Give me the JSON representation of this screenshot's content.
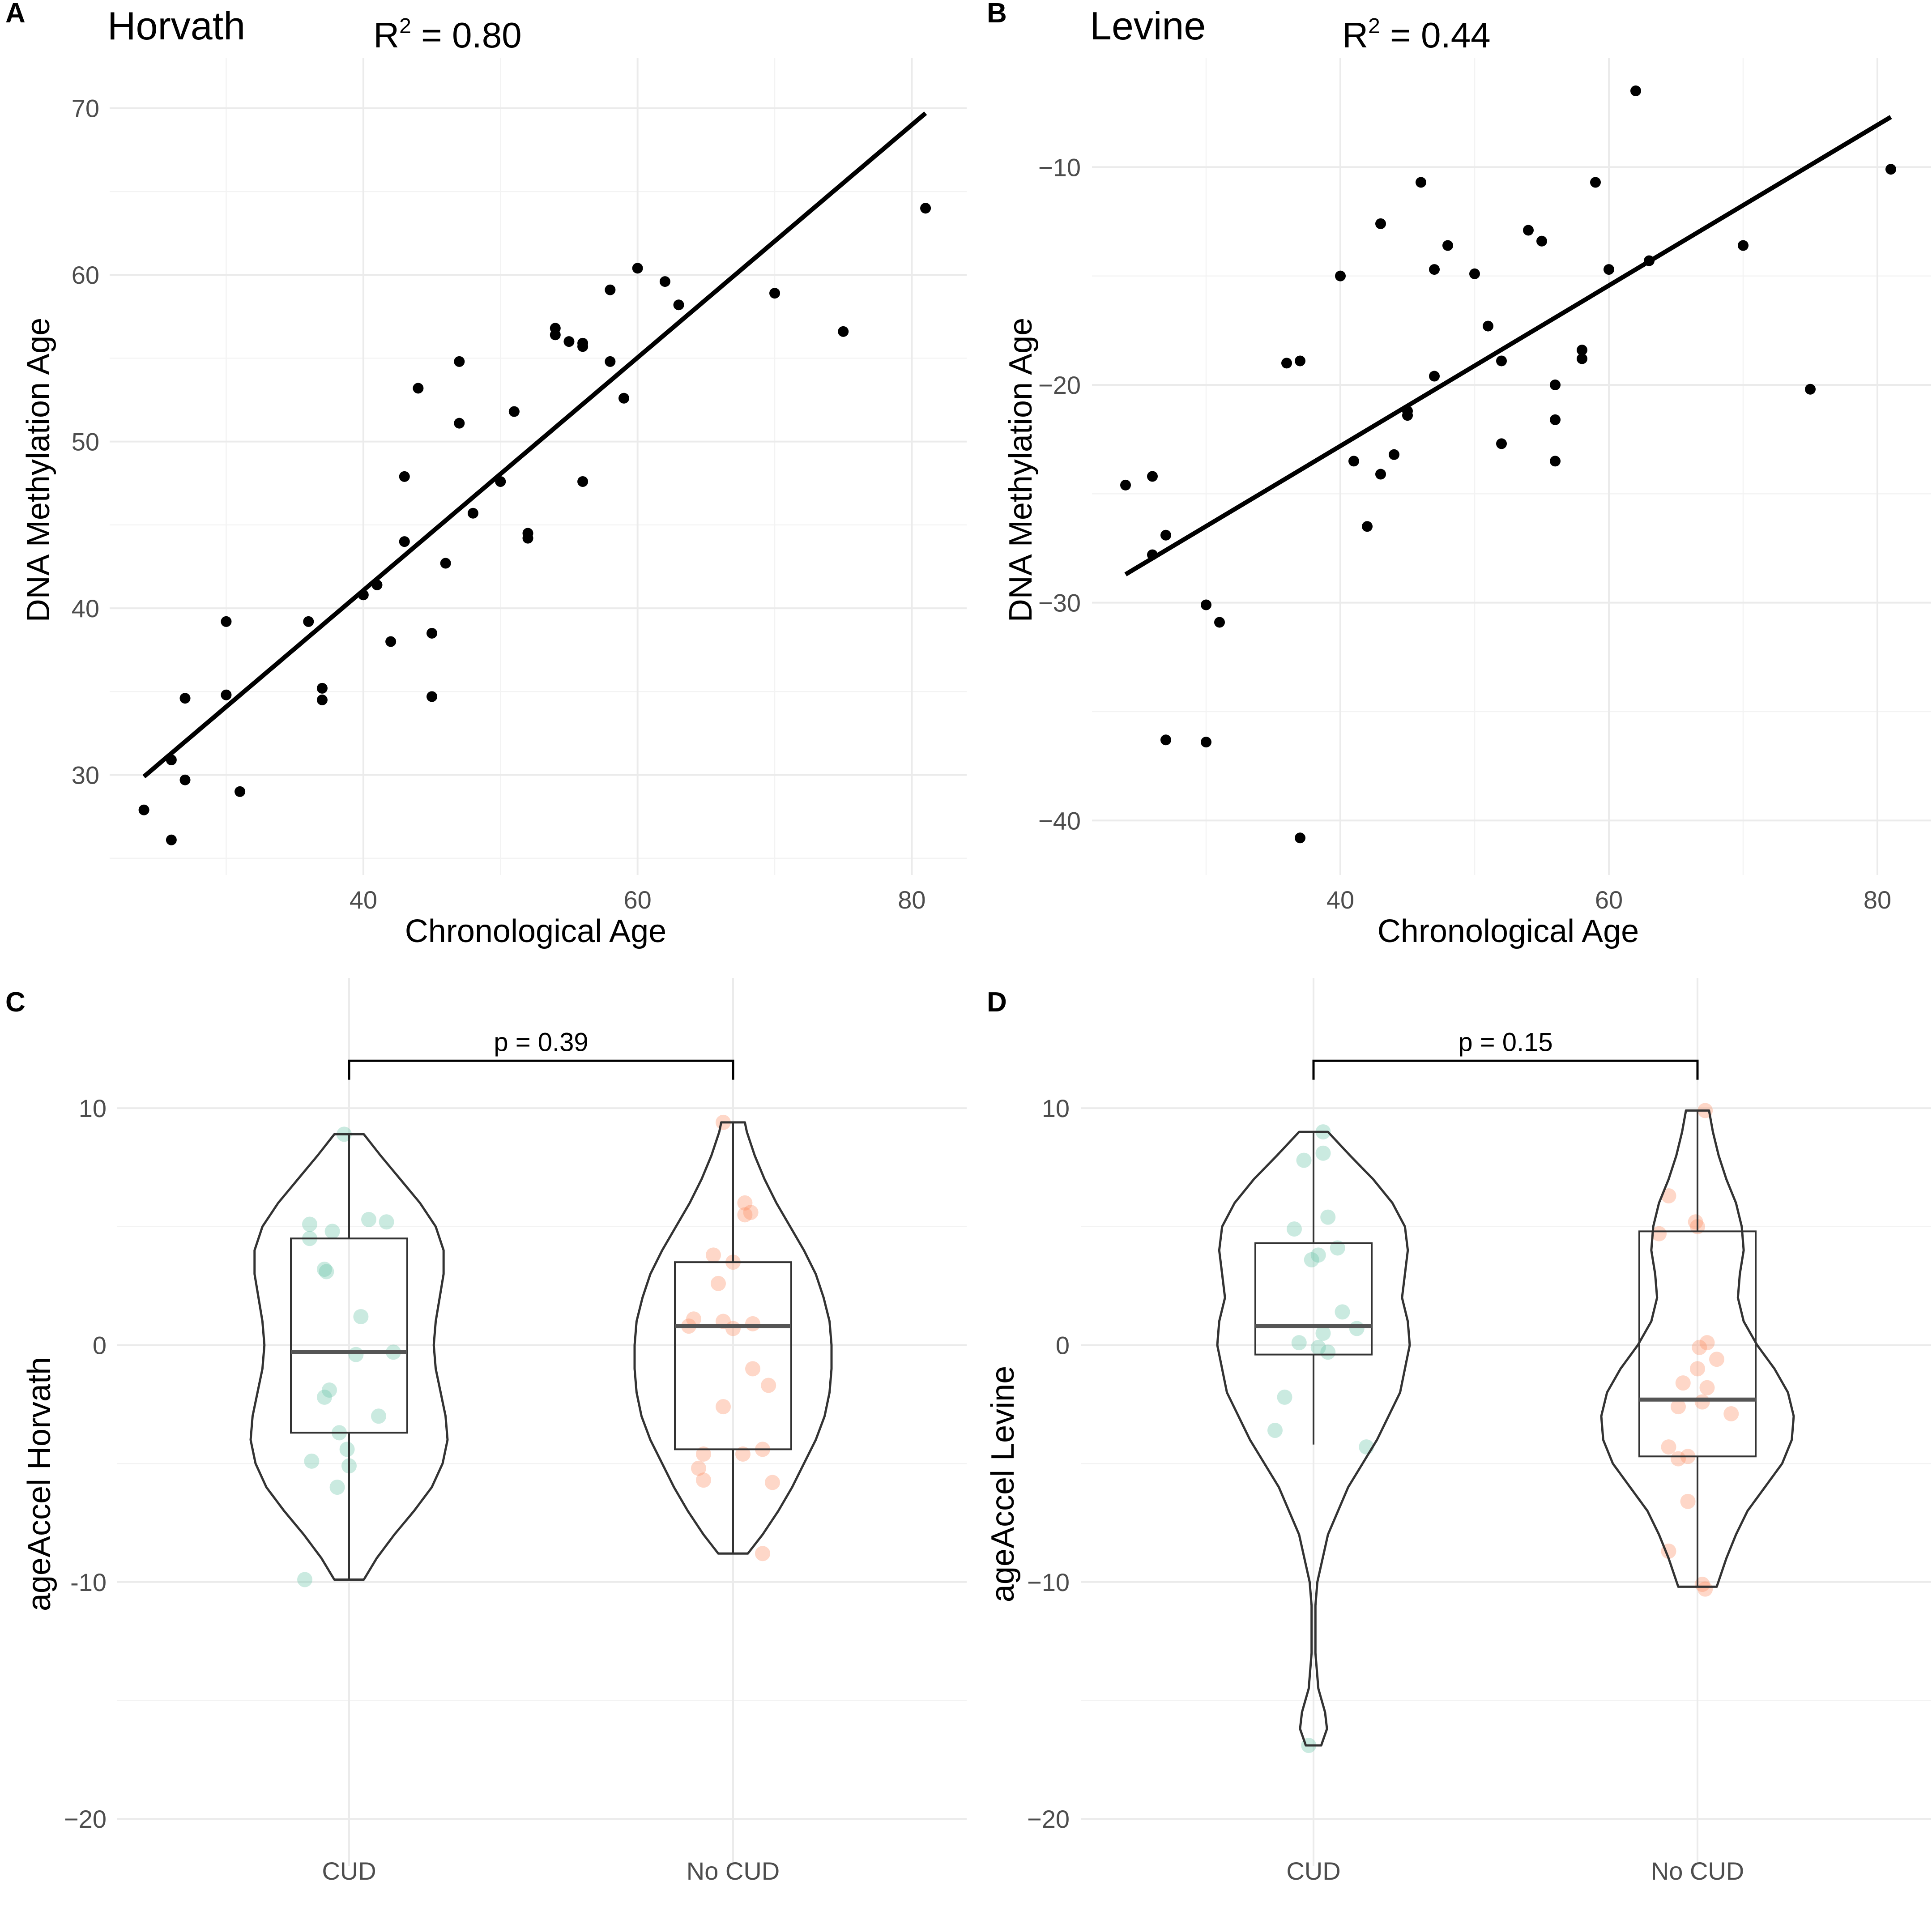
{
  "colors": {
    "cud": "#66c2a5",
    "no_cud": "#fc8d62",
    "point": "#000000",
    "line": "#000000",
    "outline": "#333333"
  },
  "chart_data": [
    {
      "panel": "A",
      "type": "scatter",
      "title": "Horvath",
      "r2_label": "R",
      "r2_sup": "2",
      "r2_value": " = 0.80",
      "xlabel": "Chronological Age",
      "ylabel": "DNA Methylation Age",
      "xlim": [
        21.5,
        84
      ],
      "ylim": [
        24,
        73
      ],
      "xticks": [
        40,
        60,
        80
      ],
      "xtick_labels": [
        "40",
        "60",
        "80"
      ],
      "xminor": [
        30,
        50,
        70
      ],
      "yticks": [
        30,
        40,
        50,
        60,
        70
      ],
      "ytick_labels": [
        "30",
        "40",
        "50",
        "60",
        "70"
      ],
      "yminor": [
        25,
        35,
        45,
        55,
        65
      ],
      "fit_line": {
        "x": [
          24,
          81
        ],
        "y": [
          29.9,
          69.7
        ]
      },
      "points": [
        [
          24,
          27.9
        ],
        [
          26,
          26.1
        ],
        [
          26,
          30.9
        ],
        [
          27,
          34.6
        ],
        [
          27,
          29.7
        ],
        [
          30,
          39.2
        ],
        [
          30,
          34.8
        ],
        [
          31,
          29.0
        ],
        [
          36,
          39.2
        ],
        [
          37,
          35.2
        ],
        [
          37,
          34.5
        ],
        [
          40,
          40.8
        ],
        [
          41,
          41.4
        ],
        [
          42,
          38.0
        ],
        [
          43,
          47.9
        ],
        [
          43,
          44.0
        ],
        [
          44,
          53.2
        ],
        [
          45,
          38.5
        ],
        [
          45,
          34.7
        ],
        [
          46,
          42.7
        ],
        [
          47,
          54.8
        ],
        [
          47,
          51.1
        ],
        [
          48,
          45.7
        ],
        [
          50,
          47.6
        ],
        [
          51,
          51.8
        ],
        [
          52,
          44.5
        ],
        [
          52,
          44.2
        ],
        [
          54,
          56.8
        ],
        [
          54,
          56.4
        ],
        [
          55,
          56.0
        ],
        [
          56,
          55.9
        ],
        [
          56,
          55.7
        ],
        [
          56,
          47.6
        ],
        [
          58,
          59.1
        ],
        [
          58,
          54.8
        ],
        [
          59,
          52.6
        ],
        [
          60,
          60.4
        ],
        [
          62,
          59.6
        ],
        [
          63,
          58.2
        ],
        [
          70,
          58.9
        ],
        [
          75,
          56.6
        ],
        [
          81,
          64.0
        ]
      ]
    },
    {
      "panel": "B",
      "type": "scatter",
      "title": "Levine",
      "r2_label": "R",
      "r2_sup": "2",
      "r2_value": " = 0.44",
      "xlabel": "Chronological Age",
      "ylabel": "DNA Methylation Age",
      "xlim": [
        21.5,
        84
      ],
      "ylim": [
        -42.5,
        -5
      ],
      "xticks": [
        40,
        60,
        80
      ],
      "xtick_labels": [
        "40",
        "60",
        "80"
      ],
      "xminor": [
        30,
        50,
        70
      ],
      "yticks": [
        -40,
        -30,
        -20,
        -10
      ],
      "ytick_labels": [
        "−40",
        "−30",
        "−20",
        "−10"
      ],
      "yminor": [
        -35,
        -25,
        -15
      ],
      "fit_line": {
        "x": [
          24,
          81
        ],
        "y": [
          -28.7,
          -7.7
        ]
      },
      "points": [
        [
          24,
          -24.6
        ],
        [
          26,
          -24.2
        ],
        [
          26,
          -27.8
        ],
        [
          27,
          -26.9
        ],
        [
          27,
          -36.3
        ],
        [
          30,
          -30.1
        ],
        [
          30,
          -36.4
        ],
        [
          31,
          -30.9
        ],
        [
          36,
          -19.0
        ],
        [
          37,
          -18.9
        ],
        [
          37,
          -40.8
        ],
        [
          40,
          -15.0
        ],
        [
          41,
          -23.5
        ],
        [
          42,
          -26.5
        ],
        [
          43,
          -12.6
        ],
        [
          43,
          -24.1
        ],
        [
          44,
          -23.2
        ],
        [
          45,
          -21.2
        ],
        [
          45,
          -21.4
        ],
        [
          46,
          -10.7
        ],
        [
          47,
          -14.7
        ],
        [
          47,
          -19.6
        ],
        [
          48,
          -13.6
        ],
        [
          50,
          -14.9
        ],
        [
          51,
          -17.3
        ],
        [
          52,
          -18.9
        ],
        [
          52,
          -22.7
        ],
        [
          54,
          -12.9
        ],
        [
          55,
          -13.4
        ],
        [
          56,
          -20.0
        ],
        [
          56,
          -21.6
        ],
        [
          56,
          -23.5
        ],
        [
          58,
          -18.4
        ],
        [
          58,
          -18.8
        ],
        [
          59,
          -10.7
        ],
        [
          60,
          -14.7
        ],
        [
          62,
          -6.5
        ],
        [
          63,
          -14.3
        ],
        [
          70,
          -13.6
        ],
        [
          75,
          -20.2
        ],
        [
          81,
          -10.1
        ]
      ]
    },
    {
      "panel": "C",
      "type": "violin",
      "title": "",
      "xlabel": "",
      "ylabel": "ageAccel Horvath",
      "categories": [
        "CUD",
        "No CUD"
      ],
      "ylim": [
        -22,
        15.5
      ],
      "yticks": [
        -20,
        -10,
        0,
        10
      ],
      "ytick_labels": [
        "−20",
        "-10",
        "0",
        "10"
      ],
      "yminor": [
        -15,
        -5,
        5
      ],
      "pvalue": "p = 0.39",
      "bracket_y": 12,
      "groups": [
        {
          "name": "CUD",
          "box": {
            "q1": -3.7,
            "median": -0.3,
            "q3": 4.5,
            "whisker_low": -9.9,
            "whisker_high": 8.9
          },
          "density": [
            [
              -9.9,
              0.15
            ],
            [
              -9,
              0.28
            ],
            [
              -8,
              0.46
            ],
            [
              -7,
              0.66
            ],
            [
              -6,
              0.84
            ],
            [
              -5,
              0.95
            ],
            [
              -4,
              1.0
            ],
            [
              -3,
              0.98
            ],
            [
              -2,
              0.93
            ],
            [
              -1,
              0.88
            ],
            [
              0,
              0.86
            ],
            [
              1,
              0.88
            ],
            [
              2,
              0.92
            ],
            [
              3,
              0.96
            ],
            [
              4,
              0.96
            ],
            [
              5,
              0.88
            ],
            [
              6,
              0.72
            ],
            [
              7,
              0.52
            ],
            [
              8,
              0.32
            ],
            [
              8.9,
              0.15
            ]
          ],
          "points": [
            [
              -0.45,
              -9.9
            ],
            [
              -0.38,
              -4.9
            ],
            [
              -0.12,
              -6.0
            ],
            [
              -0.4,
              5.1
            ],
            [
              -0.17,
              4.8
            ],
            [
              -0.25,
              3.2
            ],
            [
              -0.23,
              3.1
            ],
            [
              0.38,
              5.2
            ],
            [
              0.2,
              5.3
            ],
            [
              0.12,
              1.2
            ],
            [
              0.07,
              -0.4
            ],
            [
              0.45,
              -0.3
            ],
            [
              -0.2,
              -1.9
            ],
            [
              -0.25,
              -2.2
            ],
            [
              -0.1,
              -3.7
            ],
            [
              0.3,
              -3.0
            ],
            [
              -0.02,
              -4.4
            ],
            [
              0.0,
              -5.1
            ],
            [
              -0.05,
              8.9
            ],
            [
              -0.4,
              4.5
            ]
          ]
        },
        {
          "name": "No CUD",
          "box": {
            "q1": -4.4,
            "median": 0.8,
            "q3": 3.5,
            "whisker_low": -8.8,
            "whisker_high": 9.4
          },
          "density": [
            [
              -8.8,
              0.15
            ],
            [
              -8,
              0.3
            ],
            [
              -7,
              0.46
            ],
            [
              -6,
              0.6
            ],
            [
              -5,
              0.72
            ],
            [
              -4,
              0.84
            ],
            [
              -3,
              0.93
            ],
            [
              -2,
              0.98
            ],
            [
              -1,
              1.0
            ],
            [
              0,
              1.0
            ],
            [
              1,
              0.98
            ],
            [
              2,
              0.92
            ],
            [
              3,
              0.84
            ],
            [
              4,
              0.72
            ],
            [
              5,
              0.58
            ],
            [
              6,
              0.44
            ],
            [
              7,
              0.32
            ],
            [
              8,
              0.22
            ],
            [
              9,
              0.14
            ],
            [
              9.4,
              0.12
            ]
          ],
          "points": [
            [
              -0.1,
              9.4
            ],
            [
              0.12,
              6.0
            ],
            [
              0.18,
              5.6
            ],
            [
              0.12,
              5.5
            ],
            [
              -0.2,
              3.8
            ],
            [
              0.0,
              3.5
            ],
            [
              -0.15,
              2.6
            ],
            [
              -0.1,
              1.0
            ],
            [
              -0.4,
              1.1
            ],
            [
              -0.45,
              0.8
            ],
            [
              0.0,
              0.7
            ],
            [
              0.2,
              0.9
            ],
            [
              0.2,
              -1.0
            ],
            [
              0.36,
              -1.7
            ],
            [
              -0.1,
              -2.6
            ],
            [
              -0.3,
              -4.6
            ],
            [
              0.1,
              -4.6
            ],
            [
              0.3,
              -4.4
            ],
            [
              -0.35,
              -5.2
            ],
            [
              -0.3,
              -5.7
            ],
            [
              0.4,
              -5.8
            ],
            [
              0.3,
              -8.8
            ]
          ]
        }
      ]
    },
    {
      "panel": "D",
      "type": "violin",
      "title": "",
      "xlabel": "",
      "ylabel": "ageAccel Levine",
      "categories": [
        "CUD",
        "No CUD"
      ],
      "ylim": [
        -22,
        15.5
      ],
      "yticks": [
        -20,
        -10,
        0,
        10
      ],
      "ytick_labels": [
        "−20",
        "−10",
        "0",
        "10"
      ],
      "yminor": [
        -15,
        -5,
        5
      ],
      "pvalue": "p = 0.15",
      "bracket_y": 12,
      "groups": [
        {
          "name": "CUD",
          "box": {
            "q1": -0.4,
            "median": 0.8,
            "q3": 4.3,
            "whisker_low": -4.2,
            "whisker_high": 9.0
          },
          "density": [
            [
              -16.9,
              0.08
            ],
            [
              -16.2,
              0.14
            ],
            [
              -15.5,
              0.12
            ],
            [
              -14.5,
              0.05
            ],
            [
              -13,
              0.02
            ],
            [
              -11,
              0.02
            ],
            [
              -10,
              0.04
            ],
            [
              -8,
              0.15
            ],
            [
              -6,
              0.36
            ],
            [
              -4,
              0.66
            ],
            [
              -2,
              0.9
            ],
            [
              0,
              1.0
            ],
            [
              1,
              0.98
            ],
            [
              2,
              0.92
            ],
            [
              3,
              0.95
            ],
            [
              4,
              0.98
            ],
            [
              5,
              0.95
            ],
            [
              6,
              0.82
            ],
            [
              7,
              0.62
            ],
            [
              8,
              0.38
            ],
            [
              9,
              0.15
            ]
          ],
          "points": [
            [
              0.1,
              9.0
            ],
            [
              -0.1,
              7.8
            ],
            [
              0.1,
              8.1
            ],
            [
              0.15,
              5.4
            ],
            [
              -0.2,
              4.9
            ],
            [
              0.25,
              4.1
            ],
            [
              0.05,
              3.8
            ],
            [
              -0.02,
              3.6
            ],
            [
              0.3,
              1.4
            ],
            [
              0.45,
              0.7
            ],
            [
              0.1,
              0.5
            ],
            [
              -0.15,
              0.1
            ],
            [
              0.05,
              -0.1
            ],
            [
              0.15,
              -0.3
            ],
            [
              -0.3,
              -2.2
            ],
            [
              -0.4,
              -3.6
            ],
            [
              0.55,
              -4.3
            ],
            [
              -0.05,
              -16.9
            ]
          ]
        },
        {
          "name": "No CUD",
          "box": {
            "q1": -4.7,
            "median": -2.3,
            "q3": 4.8,
            "whisker_low": -10.2,
            "whisker_high": 9.9
          },
          "density": [
            [
              -10.2,
              0.2
            ],
            [
              -9,
              0.3
            ],
            [
              -8,
              0.4
            ],
            [
              -7,
              0.52
            ],
            [
              -6,
              0.7
            ],
            [
              -5,
              0.88
            ],
            [
              -4,
              0.98
            ],
            [
              -3,
              1.0
            ],
            [
              -2,
              0.94
            ],
            [
              -1,
              0.8
            ],
            [
              0,
              0.62
            ],
            [
              1,
              0.48
            ],
            [
              2,
              0.42
            ],
            [
              3,
              0.44
            ],
            [
              4,
              0.48
            ],
            [
              5,
              0.46
            ],
            [
              6,
              0.4
            ],
            [
              7,
              0.3
            ],
            [
              8,
              0.22
            ],
            [
              9,
              0.16
            ],
            [
              9.9,
              0.12
            ]
          ],
          "points": [
            [
              0.08,
              9.9
            ],
            [
              -0.3,
              6.3
            ],
            [
              -0.02,
              5.2
            ],
            [
              0.0,
              5.0
            ],
            [
              -0.4,
              4.7
            ],
            [
              0.1,
              0.1
            ],
            [
              0.02,
              -0.1
            ],
            [
              0.2,
              -0.6
            ],
            [
              0.0,
              -1.0
            ],
            [
              -0.15,
              -1.6
            ],
            [
              0.1,
              -1.8
            ],
            [
              0.05,
              -2.4
            ],
            [
              -0.2,
              -2.6
            ],
            [
              0.35,
              -2.9
            ],
            [
              -0.1,
              -4.7
            ],
            [
              -0.3,
              -4.3
            ],
            [
              -0.2,
              -4.8
            ],
            [
              -0.1,
              -6.6
            ],
            [
              -0.3,
              -8.7
            ],
            [
              0.05,
              -10.1
            ],
            [
              0.08,
              -10.3
            ]
          ]
        }
      ]
    }
  ]
}
